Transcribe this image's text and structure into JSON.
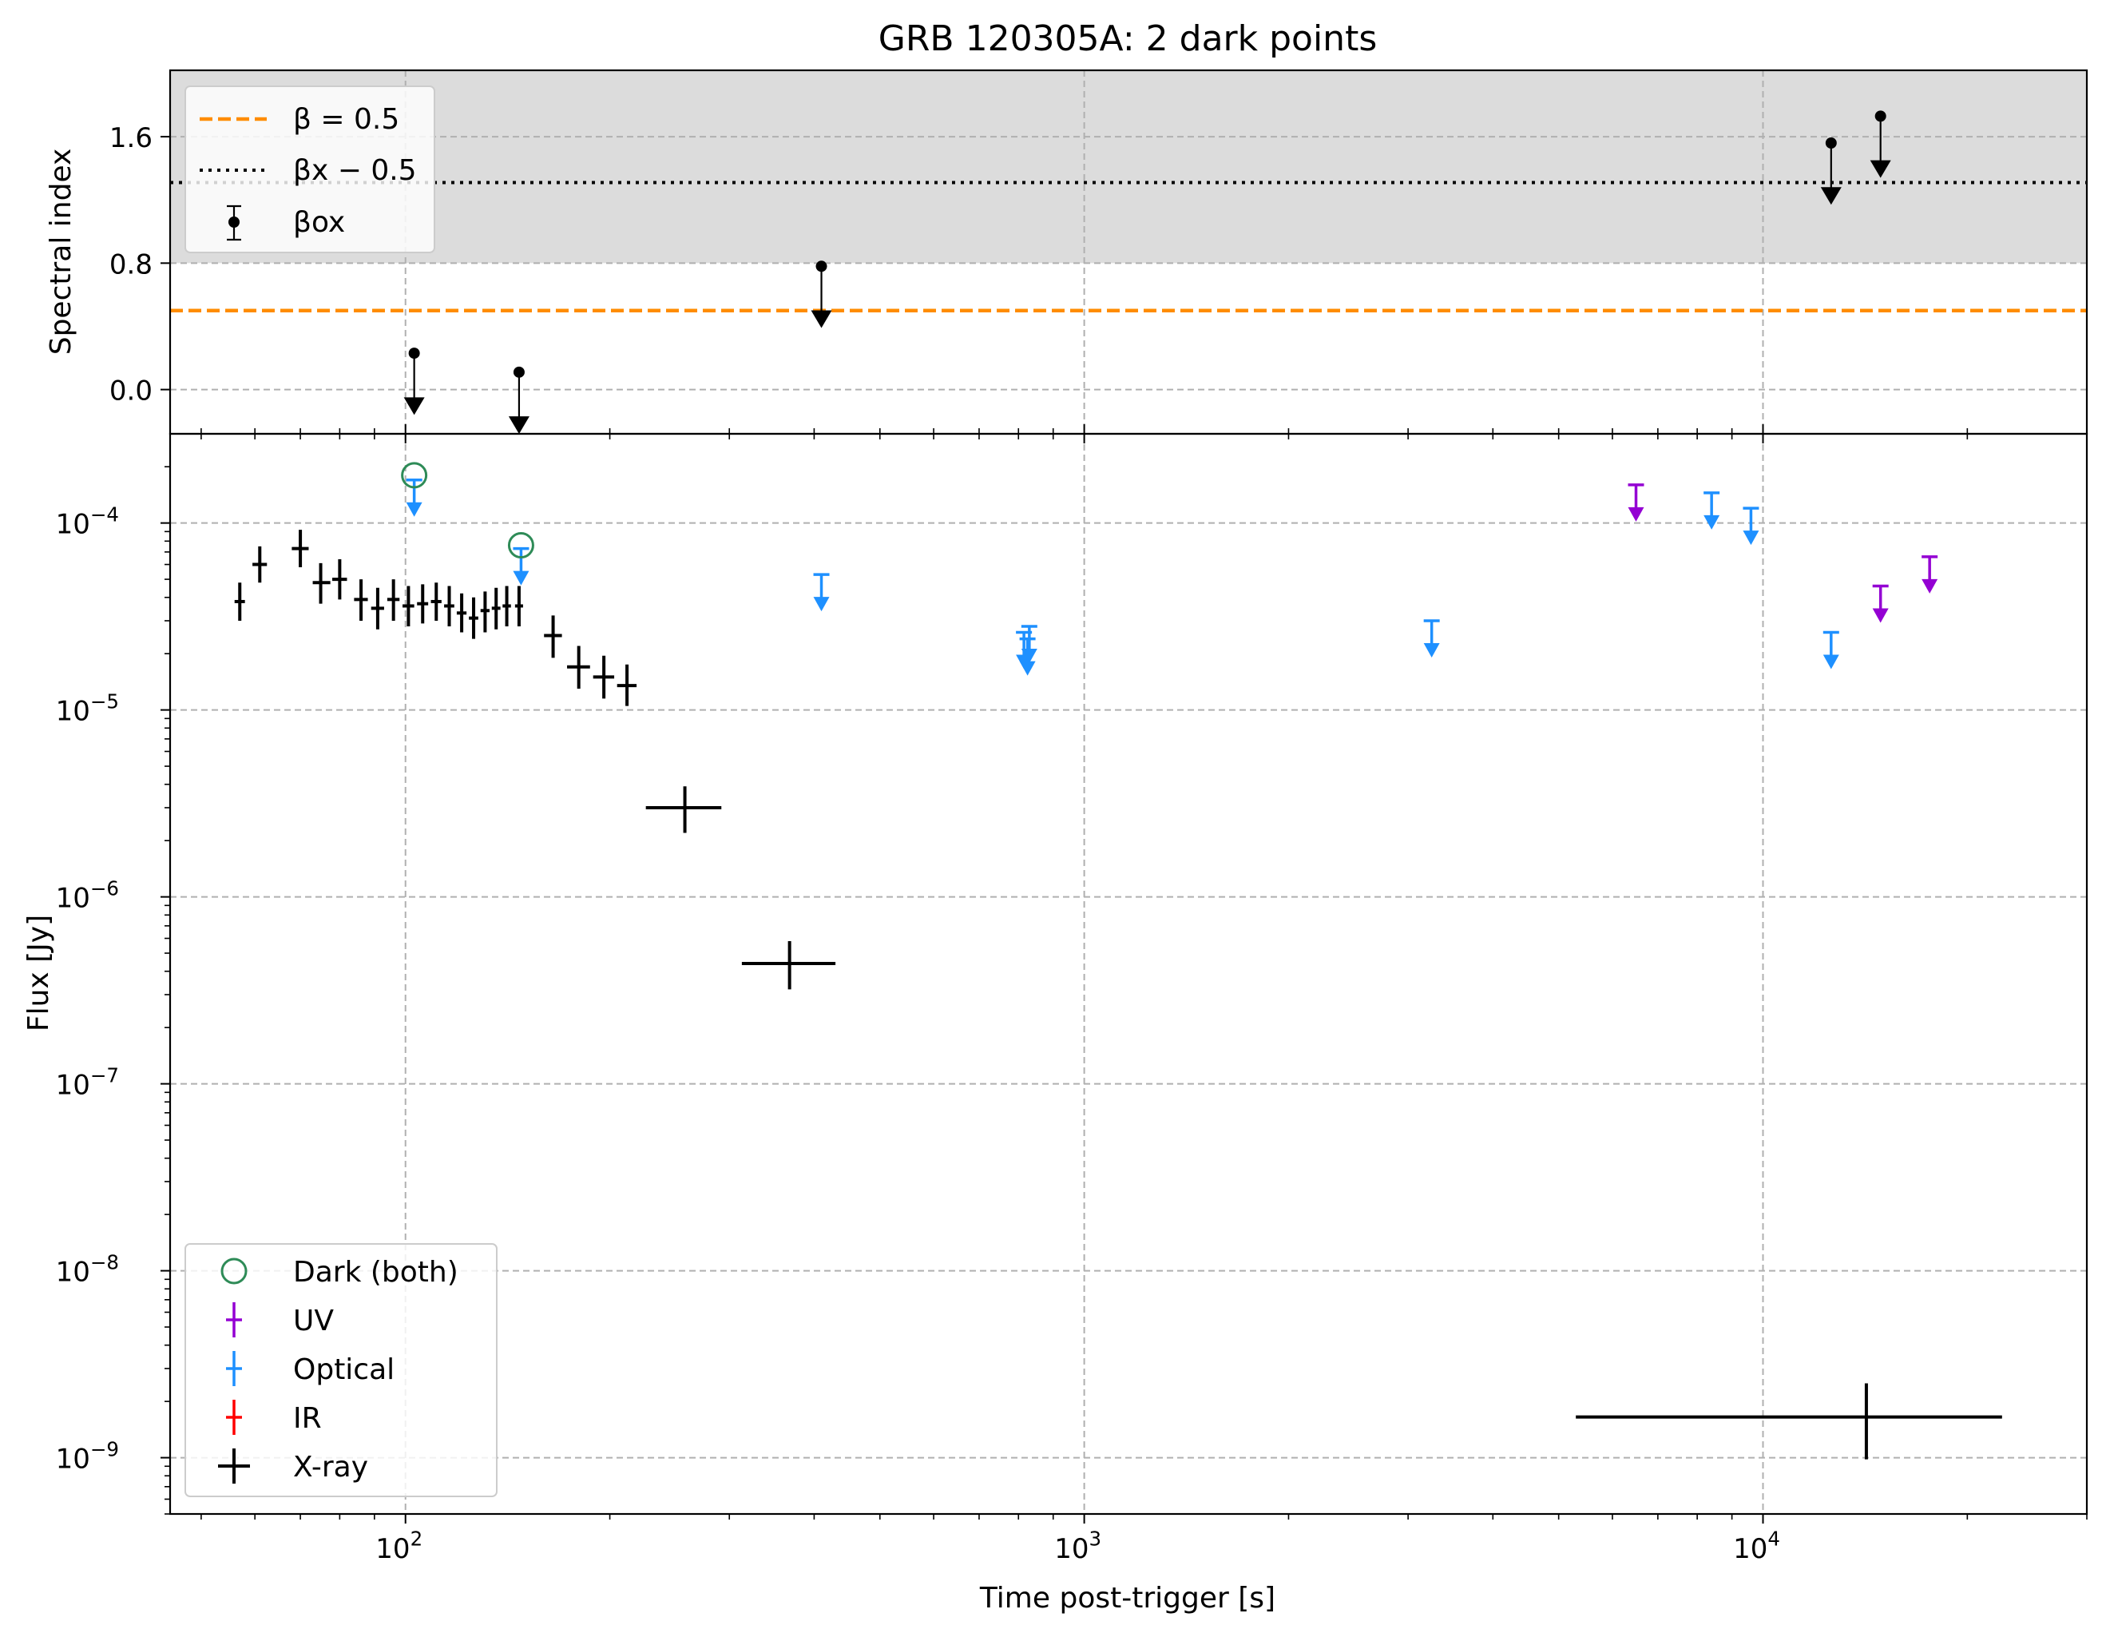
{
  "title": "GRB 120305A: 2 dark points",
  "xlabel": "Time post-trigger [s]",
  "colors": {
    "beta05": "#ff8c00",
    "xray": "#000000",
    "optical": "#1e90ff",
    "uv": "#9400d3",
    "ir": "#ff0000",
    "dark": "#2e8b57",
    "band": "#dcdcdc",
    "grid": "#b0b0b0"
  },
  "chart_data": [
    {
      "panel": "top",
      "type": "scatter",
      "ylabel": "Spectral index",
      "xscale": "log",
      "xlim": [
        45,
        30000
      ],
      "ylim": [
        -0.28,
        2.02
      ],
      "yticks": [
        0.0,
        0.8,
        1.6
      ],
      "ytick_labels": [
        "0.0",
        "0.8",
        "1.6"
      ],
      "grid": true,
      "legend_position": "upper-left",
      "shaded_band": [
        0.8,
        2.02
      ],
      "hlines": [
        {
          "name": "β = 0.5",
          "y": 0.5,
          "style": "dashed",
          "color": "#ff8c00"
        },
        {
          "name": "βx − 0.5",
          "y": 1.31,
          "style": "dotted",
          "color": "#000000"
        }
      ],
      "series": [
        {
          "name": "βox",
          "upper_limits": true,
          "points": [
            {
              "x": 103,
              "y": 0.23
            },
            {
              "x": 147,
              "y": 0.11
            },
            {
              "x": 410,
              "y": 0.78
            },
            {
              "x": 12600,
              "y": 1.56
            },
            {
              "x": 14900,
              "y": 1.73
            }
          ]
        }
      ]
    },
    {
      "panel": "bottom",
      "type": "scatter",
      "ylabel": "Flux [Jy]",
      "xscale": "log",
      "yscale": "log",
      "xlim": [
        45,
        30000
      ],
      "ylim": [
        5e-10,
        0.0003
      ],
      "xticks": [
        100,
        1000,
        10000
      ],
      "xtick_labels": [
        [
          "10",
          "2"
        ],
        [
          "10",
          "3"
        ],
        [
          "10",
          "4"
        ]
      ],
      "yticks": [
        1e-09,
        1e-08,
        1e-07,
        1e-06,
        1e-05,
        0.0001
      ],
      "ytick_labels": [
        [
          "10",
          "−9"
        ],
        [
          "10",
          "−8"
        ],
        [
          "10",
          "−7"
        ],
        [
          "10",
          "−6"
        ],
        [
          "10",
          "−5"
        ],
        [
          "10",
          "−4"
        ]
      ],
      "grid": true,
      "legend_position": "lower-left",
      "legend": [
        "Dark (both)",
        "UV",
        "Optical",
        "IR",
        "X-ray"
      ],
      "dark_points": [
        {
          "x": 103,
          "y": 0.00018
        },
        {
          "x": 148,
          "y": 7.6e-05
        }
      ],
      "xray": [
        {
          "x": 57,
          "y": 3.8e-05,
          "xlo": 56,
          "xhi": 58,
          "ylo": 3e-05,
          "yhi": 4.8e-05
        },
        {
          "x": 61,
          "y": 6e-05,
          "xlo": 59.5,
          "xhi": 62.5,
          "ylo": 4.8e-05,
          "yhi": 7.5e-05
        },
        {
          "x": 70,
          "y": 7.3e-05,
          "xlo": 68,
          "xhi": 72,
          "ylo": 5.8e-05,
          "yhi": 9.2e-05
        },
        {
          "x": 75,
          "y": 4.8e-05,
          "xlo": 73,
          "xhi": 77.5,
          "ylo": 3.7e-05,
          "yhi": 6.1e-05
        },
        {
          "x": 80,
          "y": 5e-05,
          "xlo": 78,
          "xhi": 82,
          "ylo": 3.9e-05,
          "yhi": 6.4e-05
        },
        {
          "x": 86,
          "y": 3.9e-05,
          "xlo": 84,
          "xhi": 88,
          "ylo": 3e-05,
          "yhi": 5e-05
        },
        {
          "x": 91,
          "y": 3.5e-05,
          "xlo": 89,
          "xhi": 93,
          "ylo": 2.7e-05,
          "yhi": 4.5e-05
        },
        {
          "x": 96,
          "y": 3.9e-05,
          "xlo": 94,
          "xhi": 98,
          "ylo": 3e-05,
          "yhi": 5e-05
        },
        {
          "x": 101,
          "y": 3.6e-05,
          "xlo": 99,
          "xhi": 103,
          "ylo": 2.8e-05,
          "yhi": 4.6e-05
        },
        {
          "x": 106,
          "y": 3.7e-05,
          "xlo": 104,
          "xhi": 108,
          "ylo": 2.9e-05,
          "yhi": 4.7e-05
        },
        {
          "x": 111,
          "y": 3.8e-05,
          "xlo": 109,
          "xhi": 113,
          "ylo": 3e-05,
          "yhi": 4.8e-05
        },
        {
          "x": 116,
          "y": 3.6e-05,
          "xlo": 114,
          "xhi": 118,
          "ylo": 2.8e-05,
          "yhi": 4.6e-05
        },
        {
          "x": 121,
          "y": 3.3e-05,
          "xlo": 119,
          "xhi": 123,
          "ylo": 2.6e-05,
          "yhi": 4.2e-05
        },
        {
          "x": 126,
          "y": 3.1e-05,
          "xlo": 124,
          "xhi": 128,
          "ylo": 2.4e-05,
          "yhi": 4e-05
        },
        {
          "x": 131,
          "y": 3.4e-05,
          "xlo": 129,
          "xhi": 133,
          "ylo": 2.6e-05,
          "yhi": 4.3e-05
        },
        {
          "x": 136,
          "y": 3.5e-05,
          "xlo": 134,
          "xhi": 138,
          "ylo": 2.7e-05,
          "yhi": 4.5e-05
        },
        {
          "x": 141,
          "y": 3.6e-05,
          "xlo": 139,
          "xhi": 143,
          "ylo": 2.8e-05,
          "yhi": 4.6e-05
        },
        {
          "x": 147,
          "y": 3.6e-05,
          "xlo": 145,
          "xhi": 149,
          "ylo": 2.8e-05,
          "yhi": 4.6e-05
        },
        {
          "x": 165,
          "y": 2.5e-05,
          "xlo": 160,
          "xhi": 170,
          "ylo": 1.9e-05,
          "yhi": 3.2e-05
        },
        {
          "x": 180,
          "y": 1.7e-05,
          "xlo": 173,
          "xhi": 187,
          "ylo": 1.3e-05,
          "yhi": 2.2e-05
        },
        {
          "x": 196,
          "y": 1.5e-05,
          "xlo": 189,
          "xhi": 203,
          "ylo": 1.15e-05,
          "yhi": 1.95e-05
        },
        {
          "x": 212,
          "y": 1.35e-05,
          "xlo": 205,
          "xhi": 219,
          "ylo": 1.05e-05,
          "yhi": 1.75e-05
        },
        {
          "x": 258,
          "y": 3e-06,
          "xlo": 226,
          "xhi": 292,
          "ylo": 2.2e-06,
          "yhi": 3.9e-06
        },
        {
          "x": 368,
          "y": 4.4e-07,
          "xlo": 313,
          "xhi": 430,
          "ylo": 3.2e-07,
          "yhi": 5.8e-07
        },
        {
          "x": 14200,
          "y": 1.65e-09,
          "xlo": 5300,
          "xhi": 22500,
          "ylo": 9.8e-10,
          "yhi": 2.5e-09
        }
      ],
      "optical_upper_limits": [
        {
          "x": 103,
          "y": 0.00017
        },
        {
          "x": 148,
          "y": 7.3e-05
        },
        {
          "x": 410,
          "y": 5.3e-05
        },
        {
          "x": 815,
          "y": 2.6e-05
        },
        {
          "x": 825,
          "y": 2.4e-05
        },
        {
          "x": 830,
          "y": 2.8e-05
        },
        {
          "x": 3250,
          "y": 3e-05
        },
        {
          "x": 8400,
          "y": 0.000145
        },
        {
          "x": 9600,
          "y": 0.00012
        },
        {
          "x": 12600,
          "y": 2.6e-05
        }
      ],
      "uv_upper_limits": [
        {
          "x": 6500,
          "y": 0.00016
        },
        {
          "x": 14900,
          "y": 4.6e-05
        },
        {
          "x": 17600,
          "y": 6.6e-05
        }
      ],
      "ir_upper_limits": []
    }
  ]
}
